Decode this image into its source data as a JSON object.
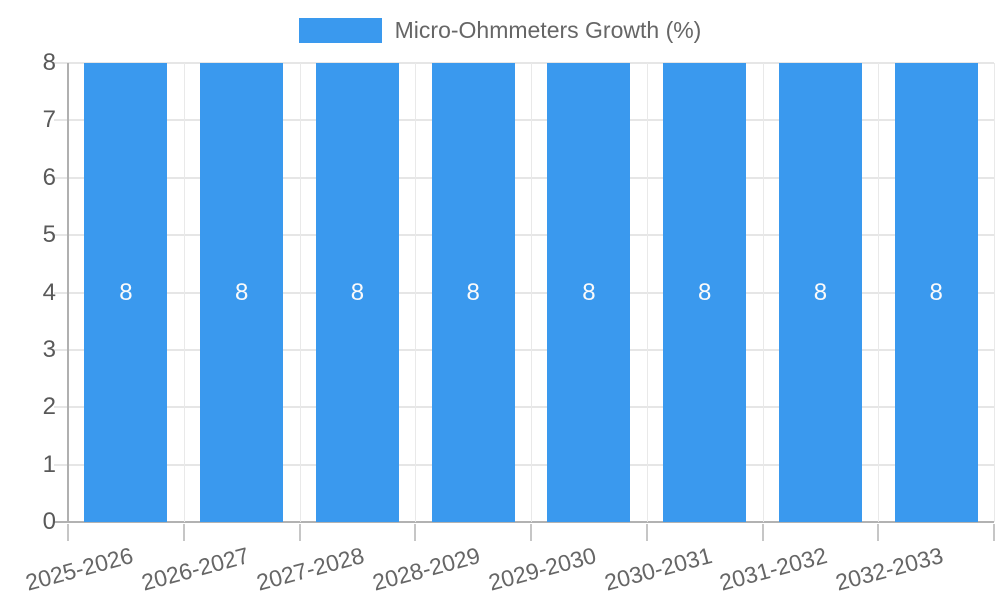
{
  "chart_data": {
    "type": "bar",
    "legend": "Micro-Ohmmeters Growth (%)",
    "legend_position": "top",
    "categories": [
      "2025-2026",
      "2026-2027",
      "2027-2028",
      "2028-2029",
      "2029-2030",
      "2030-2031",
      "2031-2032",
      "2032-2033"
    ],
    "series": [
      {
        "name": "Micro-Ohmmeters Growth (%)",
        "values": [
          8,
          8,
          8,
          8,
          8,
          8,
          8,
          8
        ]
      }
    ],
    "data_labels": [
      "8",
      "8",
      "8",
      "8",
      "8",
      "8",
      "8",
      "8"
    ],
    "title": "",
    "xlabel": "",
    "ylabel": "",
    "ylim": [
      0,
      8
    ],
    "yticks": [
      0,
      1,
      2,
      3,
      4,
      5,
      6,
      7,
      8
    ],
    "grid": true,
    "bar_color": "#3A99EE",
    "data_label_color": "#FAFAFA"
  }
}
